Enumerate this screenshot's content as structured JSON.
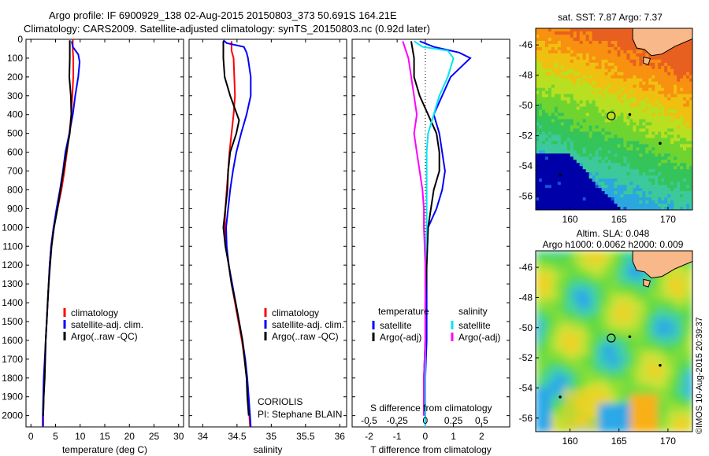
{
  "header": {
    "title_line1": "Argo profile: IF 6900929_138 02-Aug-2015 20150803_373 50.691S 164.21E",
    "title_line2": "Climatology: CARS2009. Satellite-adjusted climatology: synTS_20150803.nc (0.92d later)"
  },
  "depth_axis": {
    "ticks": [
      0,
      100,
      200,
      300,
      400,
      500,
      600,
      700,
      800,
      900,
      1000,
      1100,
      1200,
      1300,
      1400,
      1500,
      1600,
      1700,
      1800,
      1900,
      2000
    ],
    "ylim": [
      0,
      2060
    ]
  },
  "colors": {
    "climatology": "#ff0000",
    "satellite": "#0000ff",
    "argo": "#000000",
    "sal_satellite": "#00e5ee",
    "sal_argo": "#ff00ff"
  },
  "chart_data": [
    {
      "type": "line",
      "panel": "temperature",
      "xlabel": "temperature (deg C)",
      "xlim": [
        -1,
        31
      ],
      "xticks": [
        0,
        5,
        10,
        15,
        20,
        25,
        30
      ],
      "legend": [
        "climatology",
        "satellite-adj. clim.",
        "Argo(..raw -QC)"
      ],
      "legend_position": "bottom-center",
      "series": [
        {
          "name": "climatology",
          "color": "#ff0000",
          "points": [
            [
              8.5,
              0
            ],
            [
              8.5,
              60
            ],
            [
              8.6,
              100
            ],
            [
              8.6,
              200
            ],
            [
              8.4,
              300
            ],
            [
              8.2,
              400
            ],
            [
              7.8,
              500
            ],
            [
              7.3,
              600
            ],
            [
              6.8,
              700
            ],
            [
              6.2,
              800
            ],
            [
              5.4,
              900
            ],
            [
              4.6,
              1000
            ],
            [
              4.1,
              1100
            ],
            [
              3.8,
              1200
            ],
            [
              3.6,
              1300
            ],
            [
              3.4,
              1400
            ],
            [
              3.2,
              1500
            ],
            [
              3.0,
              1600
            ],
            [
              2.9,
              1700
            ],
            [
              2.7,
              1800
            ],
            [
              2.6,
              1900
            ],
            [
              2.5,
              2000
            ],
            [
              2.5,
              2060
            ]
          ]
        },
        {
          "name": "satellite-adj. clim.",
          "color": "#0000ff",
          "points": [
            [
              8.3,
              10
            ],
            [
              8.5,
              40
            ],
            [
              9.6,
              80
            ],
            [
              9.9,
              120
            ],
            [
              9.6,
              200
            ],
            [
              9.0,
              300
            ],
            [
              8.5,
              400
            ],
            [
              7.8,
              500
            ],
            [
              7.0,
              600
            ],
            [
              6.5,
              700
            ],
            [
              5.9,
              800
            ],
            [
              5.2,
              900
            ],
            [
              4.6,
              1000
            ],
            [
              4.1,
              1100
            ],
            [
              3.8,
              1200
            ],
            [
              3.6,
              1300
            ],
            [
              3.4,
              1400
            ],
            [
              3.2,
              1500
            ],
            [
              3.0,
              1600
            ],
            [
              2.8,
              1700
            ],
            [
              2.6,
              1800
            ],
            [
              2.5,
              1900
            ],
            [
              2.4,
              2000
            ],
            [
              2.4,
              2060
            ]
          ]
        },
        {
          "name": "Argo(..raw -QC)",
          "color": "#000000",
          "points": [
            [
              7.9,
              5
            ],
            [
              7.9,
              100
            ],
            [
              7.8,
              200
            ],
            [
              8.1,
              300
            ],
            [
              8.2,
              400
            ],
            [
              7.9,
              500
            ],
            [
              7.2,
              600
            ],
            [
              6.6,
              700
            ],
            [
              6.0,
              800
            ],
            [
              5.4,
              900
            ],
            [
              4.7,
              1000
            ],
            [
              4.2,
              1100
            ],
            [
              3.9,
              1200
            ],
            [
              3.6,
              1300
            ],
            [
              3.4,
              1400
            ],
            [
              3.2,
              1500
            ],
            [
              3.0,
              1600
            ],
            [
              2.9,
              1700
            ],
            [
              2.8,
              1800
            ],
            [
              2.6,
              1900
            ],
            [
              2.5,
              2000
            ]
          ]
        }
      ]
    },
    {
      "type": "line",
      "panel": "salinity",
      "xlabel": "salinity",
      "xlim": [
        33.8,
        36.1
      ],
      "xticks": [
        34,
        34.5,
        35,
        35.5,
        36
      ],
      "legend": [
        "climatology",
        "satellite-adj. clim.",
        "Argo(..raw -QC)"
      ],
      "legend_position": "bottom-right",
      "annotation_line1": "CORIOLIS",
      "annotation_line2": "PI: Stephane BLAIN",
      "series": [
        {
          "name": "climatology",
          "color": "#ff0000",
          "points": [
            [
              34.42,
              10
            ],
            [
              34.42,
              60
            ],
            [
              34.45,
              100
            ],
            [
              34.46,
              200
            ],
            [
              34.47,
              300
            ],
            [
              34.45,
              400
            ],
            [
              34.42,
              500
            ],
            [
              34.39,
              600
            ],
            [
              34.37,
              700
            ],
            [
              34.35,
              800
            ],
            [
              34.33,
              900
            ],
            [
              34.32,
              1000
            ],
            [
              34.34,
              1100
            ],
            [
              34.38,
              1200
            ],
            [
              34.42,
              1300
            ],
            [
              34.47,
              1400
            ],
            [
              34.52,
              1500
            ],
            [
              34.57,
              1600
            ],
            [
              34.61,
              1700
            ],
            [
              34.64,
              1800
            ],
            [
              34.66,
              1900
            ],
            [
              34.68,
              2000
            ],
            [
              34.69,
              2060
            ]
          ]
        },
        {
          "name": "satellite-adj. clim.",
          "color": "#0000ff",
          "points": [
            [
              34.3,
              5
            ],
            [
              34.35,
              20
            ],
            [
              34.6,
              40
            ],
            [
              34.64,
              70
            ],
            [
              34.66,
              100
            ],
            [
              34.7,
              200
            ],
            [
              34.7,
              300
            ],
            [
              34.64,
              400
            ],
            [
              34.56,
              500
            ],
            [
              34.49,
              600
            ],
            [
              34.44,
              700
            ],
            [
              34.4,
              800
            ],
            [
              34.37,
              900
            ],
            [
              34.34,
              1000
            ],
            [
              34.35,
              1100
            ],
            [
              34.38,
              1200
            ],
            [
              34.43,
              1300
            ],
            [
              34.48,
              1400
            ],
            [
              34.53,
              1500
            ],
            [
              34.58,
              1600
            ],
            [
              34.62,
              1700
            ],
            [
              34.65,
              1800
            ],
            [
              34.67,
              1900
            ],
            [
              34.69,
              2000
            ],
            [
              34.7,
              2060
            ]
          ]
        },
        {
          "name": "Argo(..raw -QC)",
          "color": "#000000",
          "points": [
            [
              34.3,
              10
            ],
            [
              34.3,
              60
            ],
            [
              34.3,
              100
            ],
            [
              34.32,
              200
            ],
            [
              34.4,
              300
            ],
            [
              34.53,
              430
            ],
            [
              34.49,
              500
            ],
            [
              34.4,
              600
            ],
            [
              34.37,
              700
            ],
            [
              34.36,
              800
            ],
            [
              34.33,
              900
            ],
            [
              34.3,
              1000
            ],
            [
              34.33,
              1100
            ],
            [
              34.38,
              1200
            ],
            [
              34.42,
              1300
            ],
            [
              34.48,
              1400
            ],
            [
              34.53,
              1500
            ],
            [
              34.58,
              1600
            ],
            [
              34.61,
              1700
            ],
            [
              34.64,
              1800
            ],
            [
              34.65,
              1900
            ],
            [
              34.67,
              2000
            ]
          ]
        }
      ]
    },
    {
      "type": "line",
      "panel": "difference",
      "xlabel": "T difference from climatology",
      "xlabel_top": "S difference from climatology",
      "xlim": [
        -2.6,
        3.0
      ],
      "xticks": [
        -2,
        -1,
        0,
        1,
        2
      ],
      "xticks_top_labels": [
        "-0.5",
        "-0.25",
        "0",
        "0.25",
        "0.5"
      ],
      "xticks_top_positions": [
        -2,
        -1,
        0,
        1,
        2
      ],
      "legend_t_title": "temperature",
      "legend_s_title": "salinity",
      "legend_t": [
        "satellite",
        "Argo(-adj)"
      ],
      "legend_s": [
        "satellite",
        "Argo(-adj)"
      ],
      "series": [
        {
          "name": "T satellite",
          "color": "#0000ff",
          "points": [
            [
              -0.2,
              10
            ],
            [
              0.3,
              40
            ],
            [
              1.2,
              70
            ],
            [
              1.6,
              100
            ],
            [
              0.9,
              200
            ],
            [
              0.6,
              300
            ],
            [
              0.3,
              400
            ],
            [
              0.5,
              500
            ],
            [
              0.6,
              600
            ],
            [
              0.7,
              700
            ],
            [
              0.6,
              800
            ],
            [
              0.4,
              900
            ],
            [
              0.1,
              1000
            ],
            [
              0.05,
              1200
            ],
            [
              0.05,
              1400
            ],
            [
              0.05,
              1600
            ],
            [
              0.0,
              1800
            ],
            [
              0.0,
              2000
            ],
            [
              0.0,
              2060
            ]
          ]
        },
        {
          "name": "T Argo(-adj)",
          "color": "#000000",
          "points": [
            [
              -0.5,
              10
            ],
            [
              -0.4,
              100
            ],
            [
              -0.4,
              200
            ],
            [
              -0.2,
              300
            ],
            [
              0.1,
              400
            ],
            [
              0.4,
              500
            ],
            [
              0.5,
              600
            ],
            [
              0.5,
              700
            ],
            [
              0.3,
              800
            ],
            [
              0.2,
              900
            ],
            [
              0.1,
              1000
            ],
            [
              0.05,
              1200
            ],
            [
              0.0,
              1400
            ],
            [
              0.0,
              1600
            ],
            [
              -0.05,
              1800
            ],
            [
              -0.05,
              2000
            ]
          ]
        },
        {
          "name": "S satellite",
          "color": "#00e5ee",
          "points": [
            [
              -0.4,
              10
            ],
            [
              -0.1,
              40
            ],
            [
              0.8,
              60
            ],
            [
              1.0,
              100
            ],
            [
              0.8,
              200
            ],
            [
              0.5,
              300
            ],
            [
              0.3,
              400
            ],
            [
              0.1,
              500
            ],
            [
              0.05,
              600
            ],
            [
              0.05,
              800
            ],
            [
              0.05,
              1000
            ],
            [
              0.0,
              1200
            ],
            [
              0.0,
              1400
            ],
            [
              0.0,
              1600
            ],
            [
              0.0,
              1800
            ],
            [
              0.0,
              2000
            ],
            [
              0.0,
              2060
            ]
          ]
        },
        {
          "name": "S Argo(-adj)",
          "color": "#ff00ff",
          "points": [
            [
              -0.8,
              10
            ],
            [
              -0.6,
              100
            ],
            [
              -0.5,
              200
            ],
            [
              -0.4,
              300
            ],
            [
              -0.3,
              400
            ],
            [
              -0.4,
              500
            ],
            [
              -0.3,
              600
            ],
            [
              -0.2,
              700
            ],
            [
              -0.1,
              800
            ],
            [
              -0.05,
              900
            ],
            [
              -0.05,
              1000
            ],
            [
              0.0,
              1200
            ],
            [
              0.0,
              1400
            ],
            [
              0.0,
              1600
            ],
            [
              -0.05,
              1800
            ],
            [
              -0.05,
              2000
            ]
          ]
        }
      ]
    },
    {
      "type": "heatmap",
      "panel": "map_sst",
      "title": "sat. SST: 7.87 Argo: 7.37",
      "xlim": [
        156.5,
        172.5
      ],
      "ylim": [
        -56.9,
        -44.9
      ],
      "xticks": [
        160,
        165,
        170
      ],
      "yticks": [
        -46,
        -48,
        -50,
        -52,
        -54,
        -56
      ],
      "argo_position": [
        164.21,
        -50.691
      ]
    },
    {
      "type": "heatmap",
      "panel": "map_sla",
      "title_line1": "Altim. SLA: 0.048",
      "title_line2": "Argo h1000: 0.0062 h2000: 0.009",
      "xlim": [
        156.5,
        172.5
      ],
      "ylim": [
        -56.9,
        -44.9
      ],
      "xticks": [
        160,
        165,
        170
      ],
      "yticks": [
        -46,
        -48,
        -50,
        -52,
        -54,
        -56
      ],
      "argo_position": [
        164.21,
        -50.691
      ]
    }
  ],
  "footer": {
    "stamp": "©IMOS 10-Aug-2015 20:39:37"
  }
}
